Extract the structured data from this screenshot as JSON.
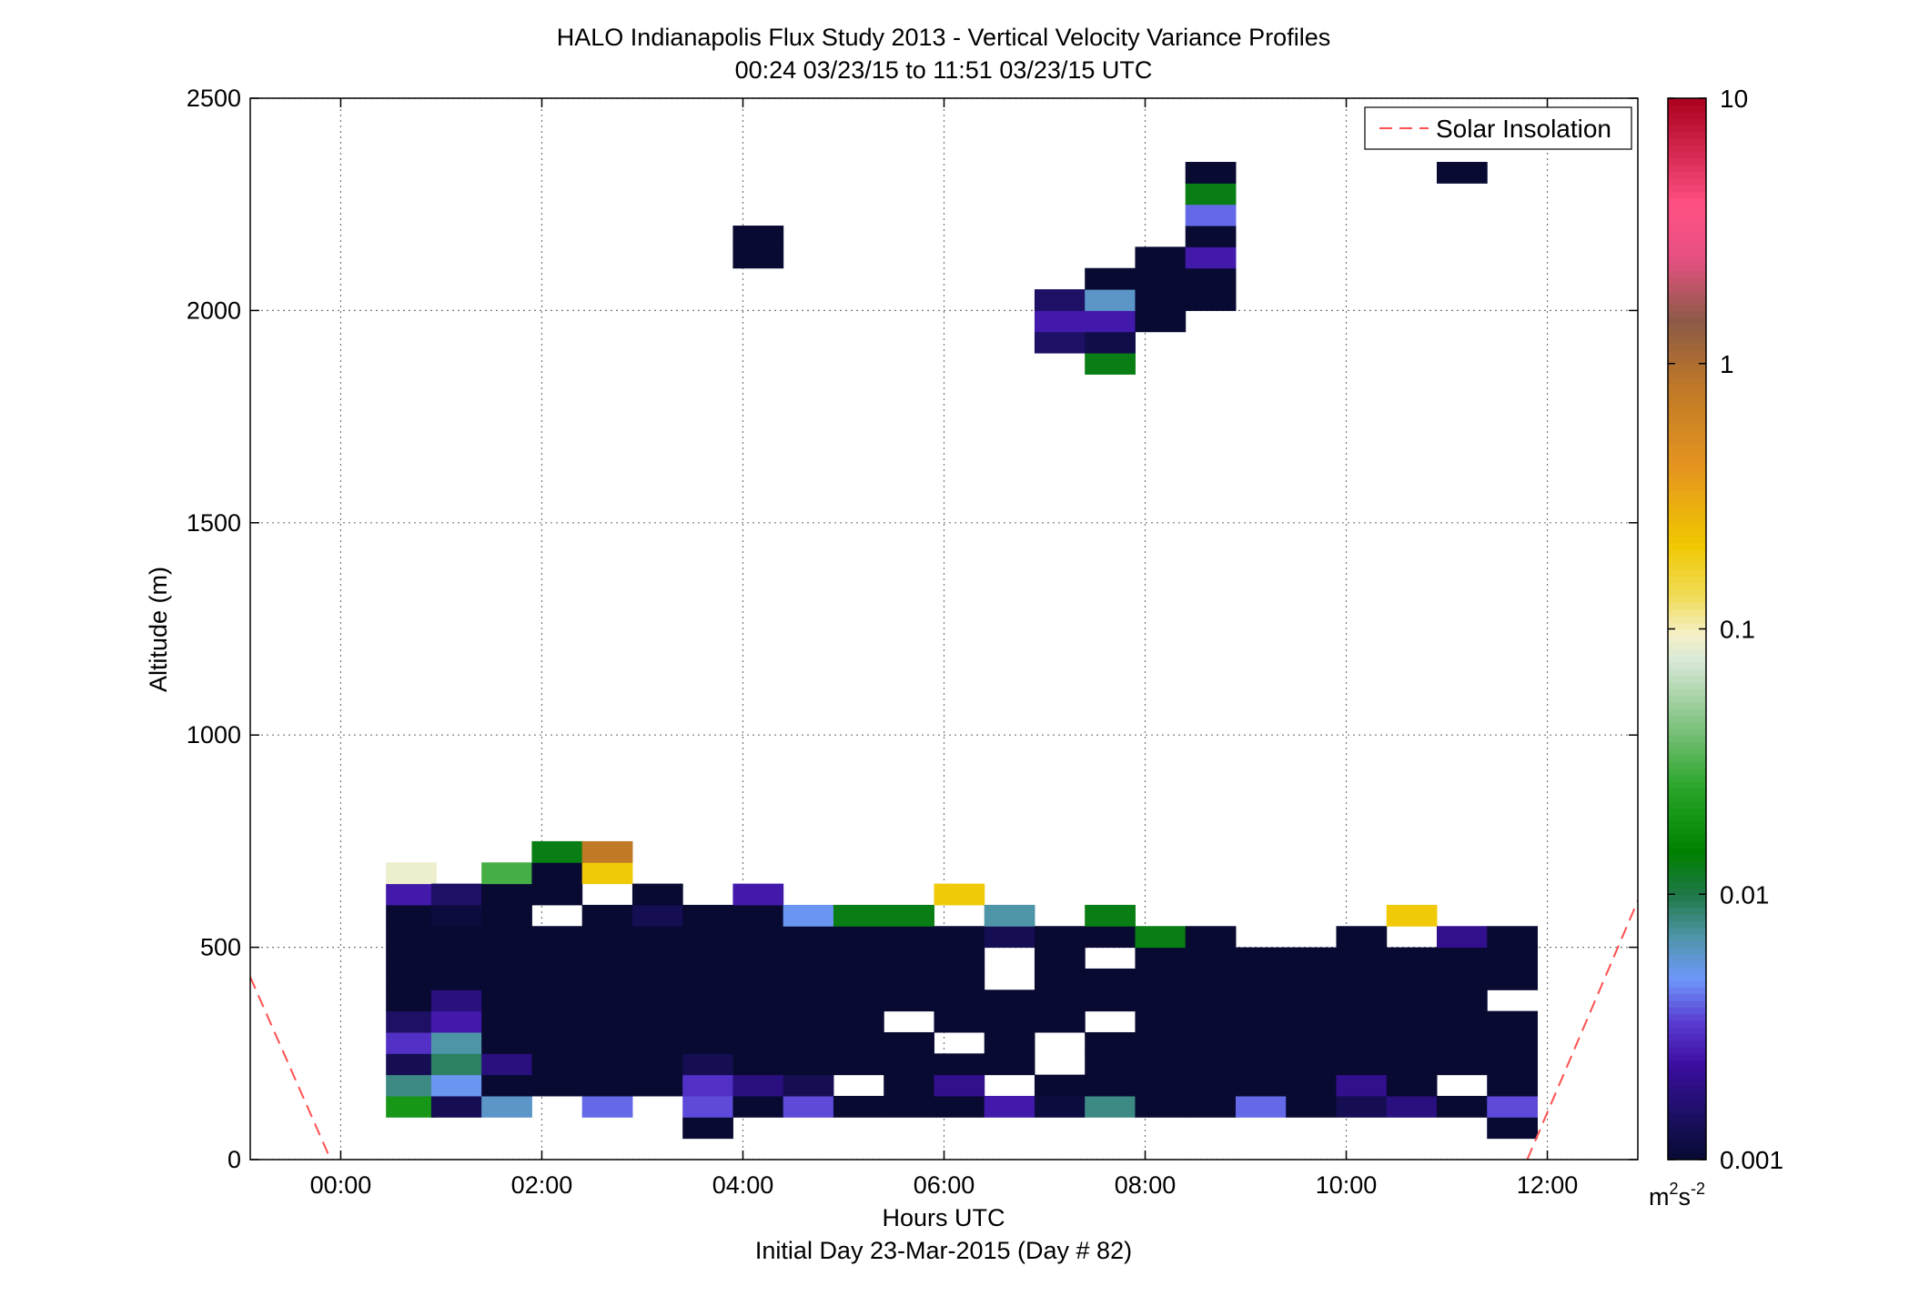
{
  "chart_data": {
    "type": "heatmap",
    "title": "HALO Indianapolis Flux Study 2013 - Vertical Velocity Variance Profiles",
    "subtitle": "00:24 03/23/15 to 11:51 03/23/15  UTC",
    "xlabel": "Hours UTC",
    "xlabel2": "Initial Day 23-Mar-2015 (Day # 82)",
    "ylabel": "Altitude (m)",
    "xlim": [
      -0.9,
      12.9
    ],
    "ylim": [
      0,
      2500
    ],
    "x_ticks": [
      0,
      2,
      4,
      6,
      8,
      10,
      12
    ],
    "x_tick_labels": [
      "00:00",
      "02:00",
      "04:00",
      "06:00",
      "08:00",
      "10:00",
      "12:00"
    ],
    "y_ticks": [
      0,
      500,
      1000,
      1500,
      2000,
      2500
    ],
    "y_tick_labels": [
      "0",
      "500",
      "1000",
      "1500",
      "2000",
      "2500"
    ],
    "grid": true,
    "colorbar": {
      "scale": "log",
      "range": [
        0.001,
        10
      ],
      "ticks": [
        0.001,
        0.01,
        0.1,
        1,
        10
      ],
      "tick_labels": [
        "0.001",
        "0.01",
        "0.1",
        "1",
        "10"
      ],
      "unit_base": "m",
      "unit_sup1": "2",
      "unit_mid": "s",
      "unit_sup2": "-2"
    },
    "legend": {
      "position": "top-right",
      "entries": [
        "Solar Insolation"
      ]
    },
    "solar_insolation": [
      {
        "x": -0.9,
        "y": 430
      },
      {
        "x": -0.1,
        "y": 0
      },
      {
        "x": 11.8,
        "y": 0
      },
      {
        "x": 12.9,
        "y": 610
      }
    ],
    "cell_width_hours": 0.5,
    "cell_height_m": 50,
    "columns": [
      {
        "x": 0.7,
        "cells": [
          [
            100,
            0.02
          ],
          [
            150,
            0.008
          ],
          [
            200,
            0.0013
          ],
          [
            250,
            0.003
          ],
          [
            300,
            0.0015
          ],
          [
            350,
            0.001
          ],
          [
            400,
            0.001
          ],
          [
            450,
            0.001
          ],
          [
            500,
            0.001
          ],
          [
            550,
            0.001
          ],
          [
            600,
            0.0025
          ],
          [
            650,
            0.09
          ]
        ]
      },
      {
        "x": 1.15,
        "cells": [
          [
            100,
            0.0013
          ],
          [
            150,
            0.005
          ],
          [
            200,
            0.009
          ],
          [
            250,
            0.007
          ],
          [
            300,
            0.0025
          ],
          [
            350,
            0.0018
          ],
          [
            400,
            0.001
          ],
          [
            450,
            0.001
          ],
          [
            500,
            0.001
          ],
          [
            550,
            0.0011
          ],
          [
            600,
            0.0015
          ]
        ]
      },
      {
        "x": 1.65,
        "cells": [
          [
            100,
            0.006
          ],
          [
            150,
            0.001
          ],
          [
            200,
            0.0018
          ],
          [
            250,
            0.001
          ],
          [
            300,
            0.001
          ],
          [
            350,
            0.001
          ],
          [
            400,
            0.001
          ],
          [
            450,
            0.001
          ],
          [
            500,
            0.001
          ],
          [
            550,
            0.001
          ],
          [
            600,
            0.001
          ],
          [
            650,
            0.03
          ]
        ]
      },
      {
        "x": 2.15,
        "cells": [
          [
            150,
            0.001
          ],
          [
            200,
            0.001
          ],
          [
            250,
            0.001
          ],
          [
            300,
            0.001
          ],
          [
            350,
            0.001
          ],
          [
            400,
            0.001
          ],
          [
            450,
            0.001
          ],
          [
            500,
            0.001
          ],
          [
            600,
            0.001
          ],
          [
            650,
            0.001
          ],
          [
            700,
            0.013
          ]
        ]
      },
      {
        "x": 2.65,
        "cells": [
          [
            100,
            0.004
          ],
          [
            150,
            0.001
          ],
          [
            200,
            0.001
          ],
          [
            250,
            0.001
          ],
          [
            300,
            0.001
          ],
          [
            350,
            0.001
          ],
          [
            400,
            0.001
          ],
          [
            450,
            0.001
          ],
          [
            500,
            0.001
          ],
          [
            550,
            0.001
          ],
          [
            650,
            0.2
          ],
          [
            700,
            0.8
          ]
        ]
      },
      {
        "x": 3.15,
        "cells": [
          [
            150,
            0.001
          ],
          [
            200,
            0.001
          ],
          [
            250,
            0.001
          ],
          [
            300,
            0.001
          ],
          [
            350,
            0.001
          ],
          [
            400,
            0.001
          ],
          [
            450,
            0.001
          ],
          [
            500,
            0.001
          ],
          [
            550,
            0.0013
          ],
          [
            600,
            0.001
          ]
        ]
      },
      {
        "x": 3.65,
        "cells": [
          [
            50,
            0.001
          ],
          [
            100,
            0.0035
          ],
          [
            150,
            0.003
          ],
          [
            200,
            0.0013
          ],
          [
            250,
            0.001
          ],
          [
            300,
            0.001
          ],
          [
            350,
            0.001
          ],
          [
            400,
            0.001
          ],
          [
            450,
            0.001
          ],
          [
            500,
            0.001
          ],
          [
            550,
            0.001
          ]
        ]
      },
      {
        "x": 4.15,
        "cells": [
          [
            100,
            0.001
          ],
          [
            150,
            0.0018
          ],
          [
            200,
            0.001
          ],
          [
            250,
            0.001
          ],
          [
            300,
            0.001
          ],
          [
            350,
            0.001
          ],
          [
            400,
            0.001
          ],
          [
            450,
            0.001
          ],
          [
            500,
            0.001
          ],
          [
            550,
            0.001
          ],
          [
            600,
            0.0025
          ],
          [
            2100,
            0.001
          ],
          [
            2150,
            0.001
          ]
        ]
      },
      {
        "x": 4.65,
        "cells": [
          [
            100,
            0.0035
          ],
          [
            150,
            0.0013
          ],
          [
            200,
            0.001
          ],
          [
            250,
            0.001
          ],
          [
            300,
            0.001
          ],
          [
            350,
            0.001
          ],
          [
            400,
            0.001
          ],
          [
            450,
            0.001
          ],
          [
            500,
            0.001
          ],
          [
            550,
            0.005
          ]
        ]
      },
      {
        "x": 5.15,
        "cells": [
          [
            100,
            0.001
          ],
          [
            200,
            0.001
          ],
          [
            250,
            0.001
          ],
          [
            300,
            0.001
          ],
          [
            350,
            0.001
          ],
          [
            400,
            0.001
          ],
          [
            450,
            0.001
          ],
          [
            500,
            0.001
          ],
          [
            550,
            0.013
          ]
        ]
      },
      {
        "x": 5.65,
        "cells": [
          [
            100,
            0.001
          ],
          [
            150,
            0.001
          ],
          [
            200,
            0.001
          ],
          [
            250,
            0.001
          ],
          [
            350,
            0.001
          ],
          [
            400,
            0.001
          ],
          [
            450,
            0.001
          ],
          [
            500,
            0.001
          ],
          [
            550,
            0.013
          ]
        ]
      },
      {
        "x": 6.15,
        "cells": [
          [
            100,
            0.001
          ],
          [
            150,
            0.002
          ],
          [
            200,
            0.001
          ],
          [
            300,
            0.001
          ],
          [
            350,
            0.001
          ],
          [
            400,
            0.001
          ],
          [
            450,
            0.001
          ],
          [
            500,
            0.001
          ],
          [
            600,
            0.2
          ]
        ]
      },
      {
        "x": 6.65,
        "cells": [
          [
            100,
            0.0025
          ],
          [
            200,
            0.001
          ],
          [
            250,
            0.001
          ],
          [
            300,
            0.001
          ],
          [
            350,
            0.001
          ],
          [
            500,
            0.0013
          ],
          [
            550,
            0.007
          ]
        ]
      },
      {
        "x": 7.15,
        "cells": [
          [
            100,
            0.0011
          ],
          [
            150,
            0.001
          ],
          [
            300,
            0.001
          ],
          [
            350,
            0.001
          ],
          [
            400,
            0.001
          ],
          [
            450,
            0.001
          ],
          [
            500,
            0.001
          ],
          [
            1900,
            0.0015
          ],
          [
            1950,
            0.0025
          ],
          [
            2000,
            0.0015
          ]
        ]
      },
      {
        "x": 7.65,
        "cells": [
          [
            100,
            0.008
          ],
          [
            150,
            0.001
          ],
          [
            200,
            0.001
          ],
          [
            250,
            0.001
          ],
          [
            350,
            0.001
          ],
          [
            400,
            0.001
          ],
          [
            500,
            0.001
          ],
          [
            550,
            0.013
          ],
          [
            1850,
            0.013
          ],
          [
            1900,
            0.0012
          ],
          [
            1950,
            0.0025
          ],
          [
            2000,
            0.006
          ],
          [
            2050,
            0.001
          ]
        ]
      },
      {
        "x": 8.15,
        "cells": [
          [
            100,
            0.001
          ],
          [
            150,
            0.001
          ],
          [
            200,
            0.001
          ],
          [
            250,
            0.001
          ],
          [
            300,
            0.001
          ],
          [
            350,
            0.001
          ],
          [
            400,
            0.001
          ],
          [
            450,
            0.001
          ],
          [
            500,
            0.013
          ],
          [
            1950,
            0.001
          ],
          [
            2000,
            0.001
          ],
          [
            2050,
            0.001
          ],
          [
            2100,
            0.001
          ]
        ]
      },
      {
        "x": 8.65,
        "cells": [
          [
            100,
            0.001
          ],
          [
            150,
            0.001
          ],
          [
            200,
            0.001
          ],
          [
            250,
            0.001
          ],
          [
            300,
            0.001
          ],
          [
            350,
            0.001
          ],
          [
            400,
            0.001
          ],
          [
            450,
            0.001
          ],
          [
            500,
            0.001
          ],
          [
            2000,
            0.001
          ],
          [
            2050,
            0.001
          ],
          [
            2100,
            0.0025
          ],
          [
            2150,
            0.001
          ],
          [
            2200,
            0.004
          ],
          [
            2250,
            0.013
          ],
          [
            2300,
            0.001
          ]
        ]
      },
      {
        "x": 9.15,
        "cells": [
          [
            100,
            0.004
          ],
          [
            150,
            0.001
          ],
          [
            200,
            0.001
          ],
          [
            250,
            0.001
          ],
          [
            300,
            0.001
          ],
          [
            350,
            0.001
          ],
          [
            400,
            0.001
          ],
          [
            450,
            0.001
          ]
        ]
      },
      {
        "x": 9.65,
        "cells": [
          [
            100,
            0.001
          ],
          [
            150,
            0.001
          ],
          [
            200,
            0.001
          ],
          [
            250,
            0.001
          ],
          [
            300,
            0.001
          ],
          [
            350,
            0.001
          ],
          [
            400,
            0.001
          ],
          [
            450,
            0.001
          ]
        ]
      },
      {
        "x": 10.15,
        "cells": [
          [
            100,
            0.0013
          ],
          [
            150,
            0.002
          ],
          [
            200,
            0.001
          ],
          [
            250,
            0.001
          ],
          [
            300,
            0.001
          ],
          [
            350,
            0.001
          ],
          [
            400,
            0.001
          ],
          [
            450,
            0.001
          ],
          [
            500,
            0.001
          ]
        ]
      },
      {
        "x": 10.65,
        "cells": [
          [
            100,
            0.0018
          ],
          [
            150,
            0.001
          ],
          [
            200,
            0.001
          ],
          [
            250,
            0.001
          ],
          [
            300,
            0.001
          ],
          [
            350,
            0.001
          ],
          [
            400,
            0.001
          ],
          [
            450,
            0.001
          ],
          [
            550,
            0.2
          ]
        ]
      },
      {
        "x": 11.15,
        "cells": [
          [
            100,
            0.001
          ],
          [
            200,
            0.001
          ],
          [
            250,
            0.001
          ],
          [
            300,
            0.001
          ],
          [
            350,
            0.001
          ],
          [
            400,
            0.001
          ],
          [
            450,
            0.001
          ],
          [
            500,
            0.002
          ],
          [
            2300,
            0.001
          ]
        ]
      },
      {
        "x": 11.65,
        "cells": [
          [
            50,
            0.001
          ],
          [
            100,
            0.0035
          ],
          [
            150,
            0.001
          ],
          [
            200,
            0.001
          ],
          [
            250,
            0.001
          ],
          [
            300,
            0.001
          ],
          [
            400,
            0.001
          ],
          [
            450,
            0.001
          ],
          [
            500,
            0.001
          ]
        ]
      }
    ]
  }
}
